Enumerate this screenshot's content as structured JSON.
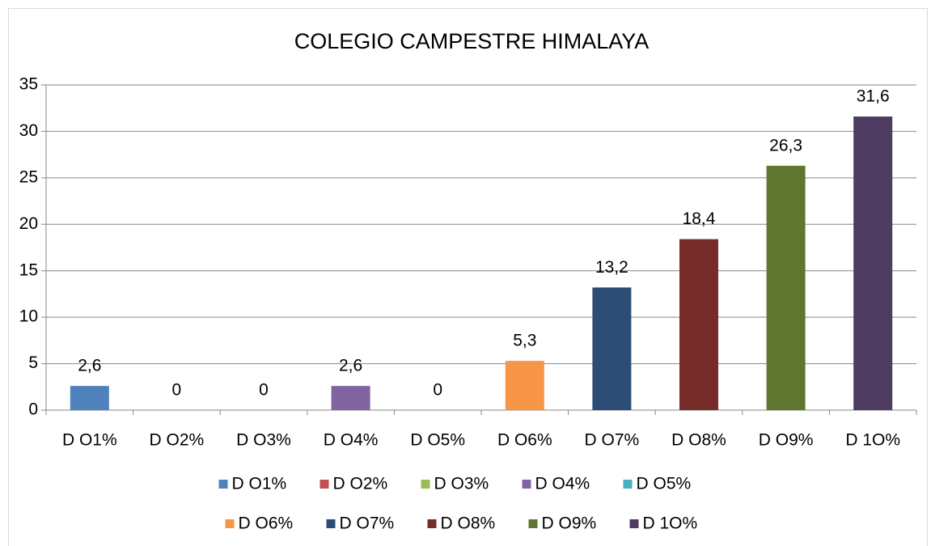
{
  "chart_data": {
    "type": "bar",
    "title": "COLEGIO CAMPESTRE HIMALAYA",
    "categories": [
      "D O1%",
      "D O2%",
      "D O3%",
      "D O4%",
      "D O5%",
      "D O6%",
      "D O7%",
      "D O8%",
      "D O9%",
      "D 1O%"
    ],
    "values": [
      2.6,
      0,
      0,
      2.6,
      0,
      5.3,
      13.2,
      18.4,
      26.3,
      31.6
    ],
    "value_labels": [
      "2,6",
      "0",
      "0",
      "2,6",
      "0",
      "5,3",
      "13,2",
      "18,4",
      "26,3",
      "31,6"
    ],
    "colors": [
      "#4f81bd",
      "#c0504d",
      "#9bbb59",
      "#8064a2",
      "#4bacc6",
      "#f79646",
      "#2c4d75",
      "#772c2a",
      "#5f7530",
      "#4d3b62"
    ],
    "ylim": [
      0,
      35
    ],
    "yticks": [
      0,
      5,
      10,
      15,
      20,
      25,
      30,
      35
    ],
    "grid": true,
    "legend": "bottom"
  }
}
